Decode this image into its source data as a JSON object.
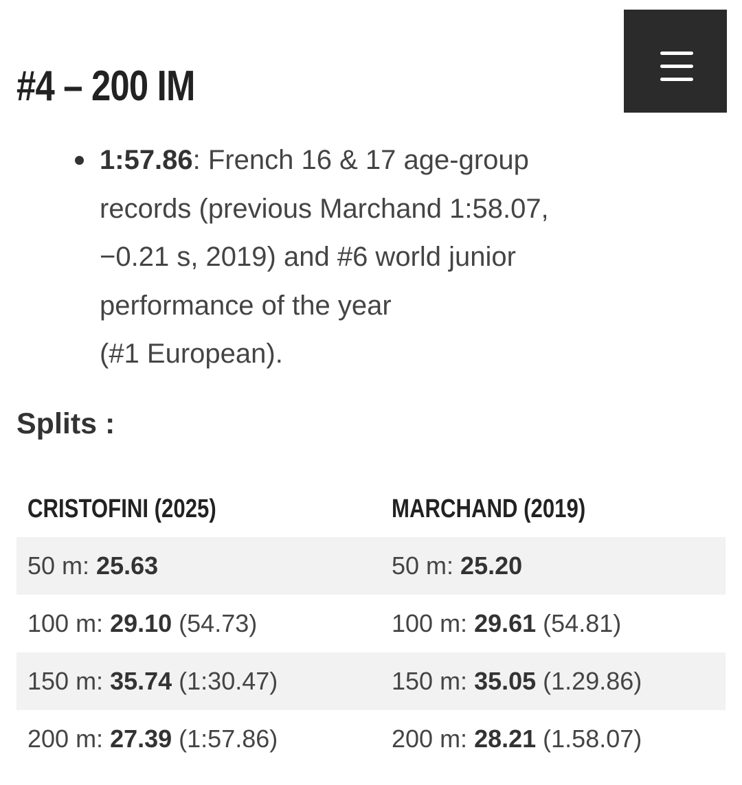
{
  "menu": {
    "icon": "hamburger-menu-icon"
  },
  "heading": "#4 – 200 IM",
  "bullet": {
    "time": "1:57.86",
    "text": ": French 16 & 17 age-group records (previous Marchand 1:58.07, −0.21 s, 2019) and #6 world junior performance of the year",
    "text_end": "(#1 European)."
  },
  "splits_title": "Splits :",
  "table": {
    "headers": [
      "CRISTOFINI (2025)",
      "MARCHAND (2019)"
    ],
    "rows": [
      {
        "c1": {
          "label": "50 m: ",
          "split": "25.63",
          "cumulative": ""
        },
        "c2": {
          "label": "50 m: ",
          "split": "25.20",
          "cumulative": ""
        }
      },
      {
        "c1": {
          "label": "100 m: ",
          "split": "29.10",
          "cumulative": " (54.73)"
        },
        "c2": {
          "label": "100 m: ",
          "split": "29.61",
          "cumulative": " (54.81)"
        }
      },
      {
        "c1": {
          "label": "150 m: ",
          "split": "35.74",
          "cumulative": " (1:30.47)"
        },
        "c2": {
          "label": "150 m: ",
          "split": "35.05",
          "cumulative": " (1.29.86)"
        }
      },
      {
        "c1": {
          "label": "200 m: ",
          "split": "27.39",
          "cumulative": " (1:57.86)"
        },
        "c2": {
          "label": "200 m: ",
          "split": "28.21",
          "cumulative": " (1.58.07)"
        }
      }
    ]
  }
}
